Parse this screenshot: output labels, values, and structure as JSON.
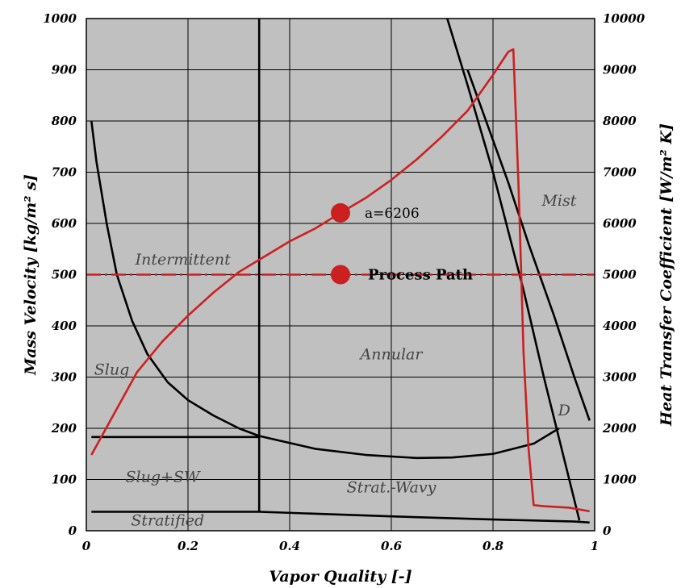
{
  "chart_data": {
    "type": "line",
    "xlabel": "Vapor Quality [-]",
    "ylabel": "Mass Velocity [kg/m² s]",
    "y2label": "Heat Transfer Coefficient [W/m² K]",
    "xlim": [
      0,
      1
    ],
    "ylim": [
      0,
      1000
    ],
    "y2lim": [
      0,
      10000
    ],
    "grid": true,
    "background": "#c0c0c0",
    "x_ticks": [
      "0",
      "0.2",
      "0.4",
      "0.6",
      "0.8",
      "1"
    ],
    "y_ticks": [
      "0",
      "100",
      "200",
      "300",
      "400",
      "500",
      "600",
      "700",
      "800",
      "900",
      "1000"
    ],
    "y2_ticks": [
      "0",
      "1000",
      "2000",
      "3000",
      "4000",
      "5000",
      "6000",
      "7000",
      "8000",
      "9000",
      "10000"
    ],
    "regions": [
      {
        "label": "Intermittent",
        "x": 0.19,
        "y": 520
      },
      {
        "label": "Slug",
        "x": 0.05,
        "y": 305
      },
      {
        "label": "Annular",
        "x": 0.6,
        "y": 335
      },
      {
        "label": "Mist",
        "x": 0.93,
        "y": 635
      },
      {
        "label": "D",
        "x": 0.94,
        "y": 225
      },
      {
        "label": "Slug+SW",
        "x": 0.15,
        "y": 95
      },
      {
        "label": "Strat.-Wavy",
        "x": 0.6,
        "y": 75
      },
      {
        "label": "Stratified",
        "x": 0.16,
        "y": 10
      }
    ],
    "boundaries": [
      {
        "kind": "slug-intermittent",
        "color": "#000000",
        "x": [
          0.01,
          0.02,
          0.04,
          0.06,
          0.09,
          0.12,
          0.16,
          0.2,
          0.25,
          0.3,
          0.34
        ],
        "y": [
          800,
          720,
          600,
          500,
          410,
          345,
          290,
          255,
          225,
          200,
          185
        ]
      },
      {
        "kind": "intermittent-annular",
        "color": "#000000",
        "x": [
          0.34,
          0.34
        ],
        "y": [
          37,
          1000
        ]
      },
      {
        "kind": "stratified-wavy",
        "color": "#000000",
        "x": [
          0.01,
          0.34,
          0.34,
          0.45,
          0.55,
          0.65,
          0.72,
          0.8,
          0.88,
          0.93
        ],
        "y": [
          183,
          183,
          185,
          160,
          148,
          142,
          143,
          150,
          170,
          200
        ]
      },
      {
        "kind": "stratified",
        "color": "#000000",
        "x": [
          0.01,
          0.34,
          0.6,
          0.8,
          0.96,
          0.99
        ],
        "y": [
          37,
          37,
          28,
          22,
          18,
          16
        ]
      },
      {
        "kind": "dryout",
        "color": "#000000",
        "x": [
          0.71,
          0.75,
          0.8,
          0.86,
          0.9,
          0.94,
          0.97
        ],
        "y": [
          1000,
          870,
          700,
          470,
          300,
          140,
          20
        ]
      },
      {
        "kind": "mist",
        "color": "#000000",
        "x": [
          0.75,
          0.79,
          0.83,
          0.87,
          0.92,
          0.96,
          0.99
        ],
        "y": [
          900,
          790,
          680,
          560,
          420,
          300,
          215
        ]
      }
    ],
    "series": [
      {
        "kind": "heat-transfer-coefficient",
        "color": "#cc2020",
        "axis": "y2",
        "x": [
          0.01,
          0.05,
          0.1,
          0.15,
          0.2,
          0.25,
          0.3,
          0.35,
          0.4,
          0.45,
          0.5,
          0.55,
          0.6,
          0.65,
          0.7,
          0.75,
          0.8,
          0.83,
          0.84,
          0.85,
          0.855,
          0.86,
          0.87,
          0.88,
          0.9,
          0.95,
          0.99
        ],
        "y": [
          1480,
          2200,
          3100,
          3700,
          4200,
          4650,
          5050,
          5350,
          5650,
          5900,
          6206,
          6500,
          6850,
          7250,
          7700,
          8200,
          8900,
          9350,
          9400,
          6800,
          5200,
          3500,
          1600,
          500,
          480,
          450,
          380
        ]
      },
      {
        "kind": "process-path",
        "color": "#cc2020",
        "dashed": true,
        "x": [
          0,
          1
        ],
        "y": [
          500,
          500
        ]
      }
    ],
    "points": [
      {
        "x": 0.5,
        "y2": 6206,
        "label": "a=6206",
        "color": "#cc2020"
      },
      {
        "x": 0.5,
        "y": 500,
        "label": "Process Path",
        "color": "#cc2020"
      }
    ]
  }
}
